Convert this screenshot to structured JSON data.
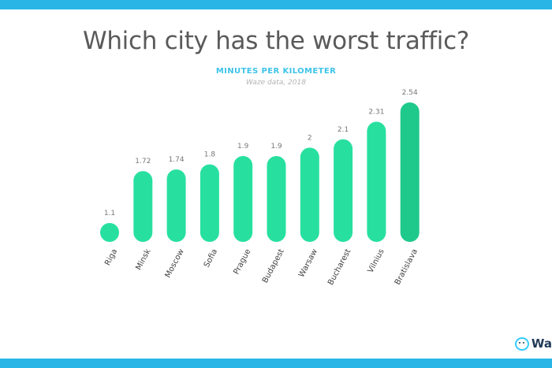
{
  "chart_data": {
    "type": "bar",
    "title": "Which city has the worst traffic?",
    "subtitle": "MINUTES PER KILOMETER",
    "source": "Waze data, 2018",
    "categories": [
      "Riga",
      "Minsk",
      "Moscow",
      "Sofia",
      "Prague",
      "Budapest",
      "Warsaw",
      "Bucharest",
      "Vilnius",
      "Bratislava"
    ],
    "values": [
      1.1,
      1.72,
      1.74,
      1.8,
      1.9,
      1.9,
      2,
      2.1,
      2.31,
      2.54
    ],
    "value_labels": [
      "1.1",
      "1.72",
      "1.74",
      "1.8",
      "1.9",
      "1.9",
      "2",
      "2.1",
      "2.31",
      "2.54"
    ],
    "xlabel": "",
    "ylabel": "",
    "grid": false,
    "colors": {
      "bar": "#27e0a0",
      "highlight": "#1fc98b",
      "title": "#5a5a5a",
      "subtitle": "#3ec3ea",
      "band": "#29b6e6"
    },
    "highlight_index": 9
  },
  "branding": {
    "logo_text": "Wa",
    "logo_icon": "waze-icon"
  }
}
